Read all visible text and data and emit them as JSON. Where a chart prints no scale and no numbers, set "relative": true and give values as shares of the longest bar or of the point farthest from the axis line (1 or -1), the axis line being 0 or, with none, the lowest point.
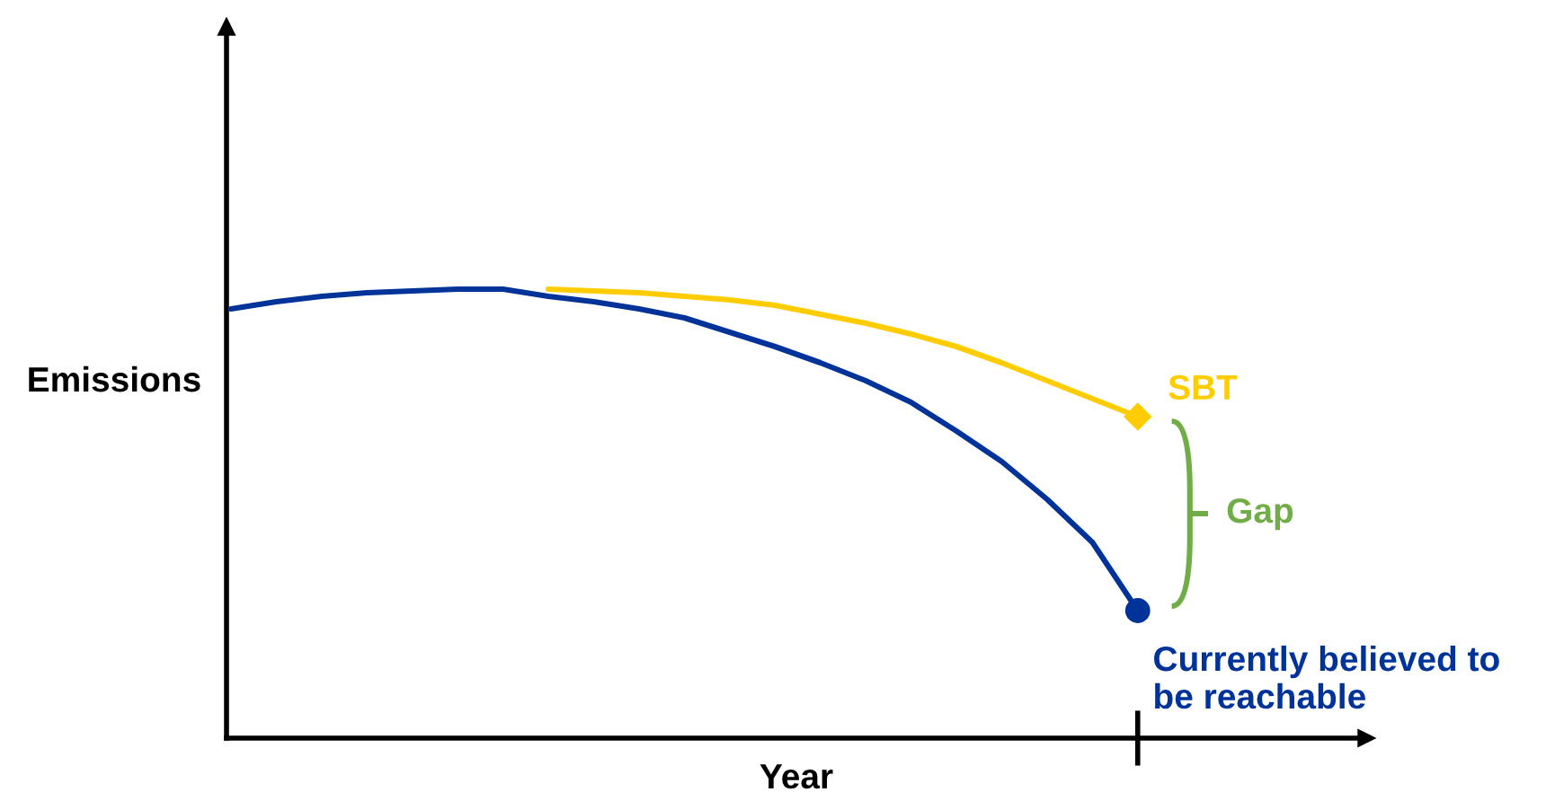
{
  "chart_data": {
    "type": "line",
    "relative": true,
    "xlabel": "Year",
    "ylabel": "Emissions",
    "categories": [
      null,
      null,
      null,
      null,
      null,
      null,
      null,
      null,
      null,
      null,
      null,
      null,
      null,
      null,
      null,
      null,
      null,
      null,
      null,
      null,
      null
    ],
    "series": [
      {
        "name": "Currently believed to be reachable",
        "color": "#003399",
        "values": [
          0.956,
          0.972,
          0.984,
          0.992,
          0.996,
          1.0,
          1.0,
          0.984,
          0.972,
          0.956,
          0.936,
          0.904,
          0.872,
          0.836,
          0.796,
          0.748,
          0.684,
          0.616,
          0.532,
          0.436,
          0.284
        ]
      },
      {
        "name": "SBT",
        "color": "#ffcc00",
        "values": [
          null,
          null,
          null,
          null,
          null,
          null,
          null,
          1.0,
          0.996,
          0.992,
          0.984,
          0.976,
          0.964,
          0.944,
          0.924,
          0.9,
          0.872,
          0.836,
          0.796,
          0.756,
          0.716
        ]
      }
    ],
    "annotations": [
      "Gap"
    ],
    "grid": false
  }
}
